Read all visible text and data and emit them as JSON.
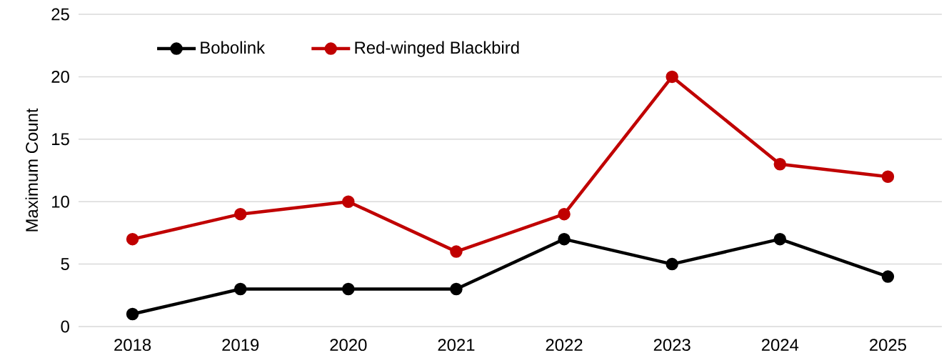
{
  "chart_data": {
    "type": "line",
    "ylabel": "Maximum Count",
    "categories": [
      "2018",
      "2019",
      "2020",
      "2021",
      "2022",
      "2023",
      "2024",
      "2025"
    ],
    "series": [
      {
        "name": "Bobolink",
        "color": "#000000",
        "values": [
          1,
          3,
          3,
          3,
          7,
          5,
          7,
          4
        ]
      },
      {
        "name": "Red-winged Blackbird",
        "color": "#c00000",
        "values": [
          7,
          9,
          10,
          6,
          9,
          20,
          13,
          12
        ]
      }
    ],
    "ylim": [
      0,
      25
    ],
    "yticks": [
      0,
      5,
      10,
      15,
      20,
      25
    ],
    "grid": "y",
    "legend": "top left",
    "marker": "circle",
    "line_style": "solid"
  }
}
